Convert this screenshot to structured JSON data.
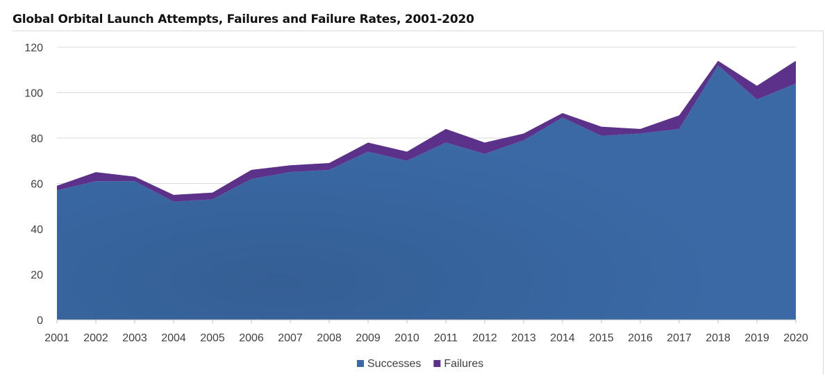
{
  "chart_data": {
    "type": "area",
    "title": "Global Orbital Launch Attempts, Failures and Failure Rates, 2001-2020",
    "xlabel": "",
    "ylabel": "",
    "stacked": true,
    "categories": [
      "2001",
      "2002",
      "2003",
      "2004",
      "2005",
      "2006",
      "2007",
      "2008",
      "2009",
      "2010",
      "2011",
      "2012",
      "2013",
      "2014",
      "2015",
      "2016",
      "2017",
      "2018",
      "2019",
      "2020"
    ],
    "series": [
      {
        "name": "Successes",
        "color": "#3a69a5",
        "values": [
          57,
          61,
          61,
          52,
          53,
          62,
          65,
          66,
          74,
          70,
          78,
          73,
          79,
          89,
          81,
          82,
          84,
          112,
          97,
          104
        ]
      },
      {
        "name": "Failures",
        "color": "#5c3189",
        "values": [
          2,
          4,
          2,
          3,
          3,
          4,
          3,
          3,
          4,
          4,
          6,
          5,
          3,
          2,
          4,
          2,
          6,
          2,
          6,
          10
        ]
      }
    ],
    "ylim": [
      0,
      120
    ],
    "yticks": [
      0,
      20,
      40,
      60,
      80,
      100,
      120
    ],
    "grid": true,
    "legend_position": "bottom"
  }
}
